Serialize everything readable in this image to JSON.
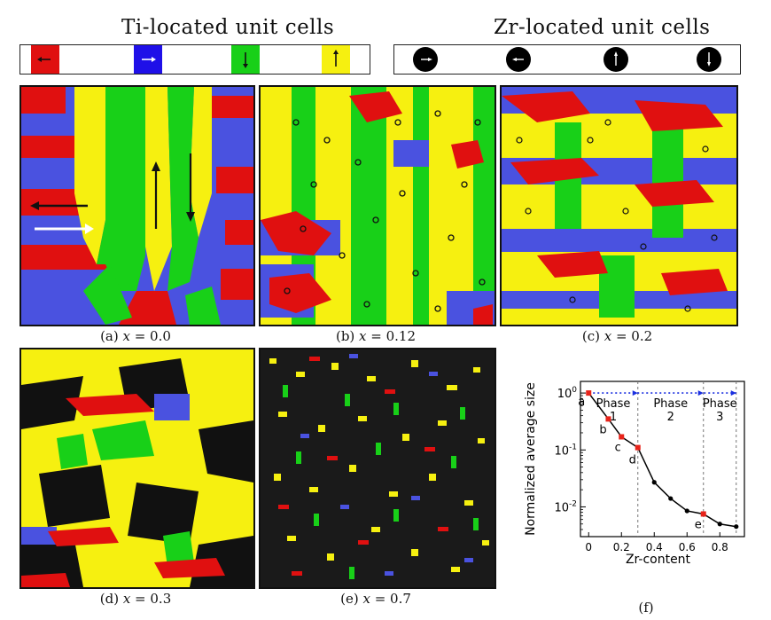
{
  "legend": {
    "ti_title": "Ti-located unit cells",
    "zr_title": "Zr-located unit cells",
    "ti_colors": [
      "#e01010",
      "#1f10e8",
      "#18d018",
      "#f6f010"
    ],
    "ti_arrows": [
      "left",
      "right",
      "down",
      "up"
    ],
    "zr_arrows": [
      "right",
      "left",
      "up",
      "down"
    ]
  },
  "panels": [
    {
      "label": "(a) ",
      "var": "x",
      "eq": " = 0.0",
      "zr": 0.0
    },
    {
      "label": "(b) ",
      "var": "x",
      "eq": " = 0.12",
      "zr": 0.12
    },
    {
      "label": "(c) ",
      "var": "x",
      "eq": " = 0.2",
      "zr": 0.2
    },
    {
      "label": "(d) ",
      "var": "x",
      "eq": " = 0.3",
      "zr": 0.3
    },
    {
      "label": "(e) ",
      "var": "x",
      "eq": " = 0.7",
      "zr": 0.7
    }
  ],
  "chart_data": {
    "type": "line",
    "caption": "(f)",
    "xlabel": "Zr-content",
    "ylabel": "Normalized average size",
    "yscale": "log",
    "xlim": [
      -0.05,
      0.95
    ],
    "ylim": [
      0.003,
      1.6
    ],
    "xticks": [
      "0",
      "0.2",
      "0.4",
      "0.6",
      "0.8"
    ],
    "yticks": [
      "10^0",
      "10^-1",
      "10^-2"
    ],
    "series": [
      {
        "x": [
          0.0,
          0.12,
          0.2,
          0.3,
          0.4,
          0.5,
          0.6,
          0.7,
          0.8,
          0.9
        ],
        "y": [
          1.0,
          0.35,
          0.17,
          0.11,
          0.027,
          0.014,
          0.0085,
          0.0075,
          0.005,
          0.0045
        ]
      }
    ],
    "highlighted_points": [
      {
        "x": 0.0,
        "y": 1.0,
        "label": "a"
      },
      {
        "x": 0.12,
        "y": 0.35,
        "label": "b"
      },
      {
        "x": 0.2,
        "y": 0.17,
        "label": "c"
      },
      {
        "x": 0.3,
        "y": 0.11,
        "label": "d"
      },
      {
        "x": 0.7,
        "y": 0.0075,
        "label": "e"
      }
    ],
    "phase_boundaries": [
      0.3,
      0.7,
      0.9
    ],
    "phases": [
      {
        "title": "Phase",
        "num": "1",
        "x": 0.15
      },
      {
        "title": "Phase",
        "num": "2",
        "x": 0.5
      },
      {
        "title": "Phase",
        "num": "3",
        "x": 0.8
      }
    ],
    "colors": {
      "line": "#000000",
      "highlight": "#e8231a",
      "boundary": "#777777",
      "arrow": "#1a2fe0"
    }
  }
}
